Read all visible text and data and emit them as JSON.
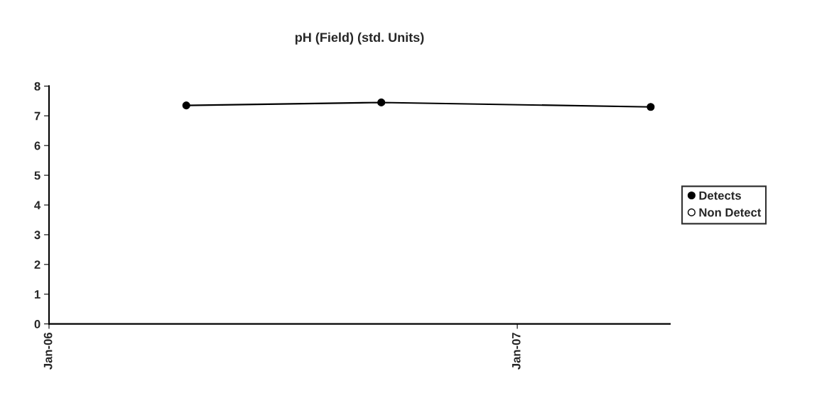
{
  "chart_data": {
    "type": "line",
    "title": "pH (Field) (std. Units)",
    "x": [
      "2006-04-18",
      "2006-09-17",
      "2007-04-15"
    ],
    "series": [
      {
        "name": "Detects",
        "color": "#000000",
        "values": [
          7.35,
          7.45,
          7.3
        ],
        "marker": "circle"
      },
      {
        "name": "Non Detect",
        "type": "scatter",
        "color": "#ffffff",
        "values": [
          null,
          null,
          null
        ],
        "marker": "circle"
      }
    ],
    "xlim": [
      "2006-01-01",
      "2007-04-30"
    ],
    "xticks": [
      {
        "value": "2006-01-01",
        "label": "Jan-06"
      },
      {
        "value": "2007-01-01",
        "label": "Jan-07"
      }
    ],
    "ylim": [
      0,
      8
    ],
    "yticks": [
      0,
      1,
      2,
      3,
      4,
      5,
      6,
      7,
      8
    ],
    "grid": false,
    "legend": "right",
    "line_style": "solid"
  }
}
